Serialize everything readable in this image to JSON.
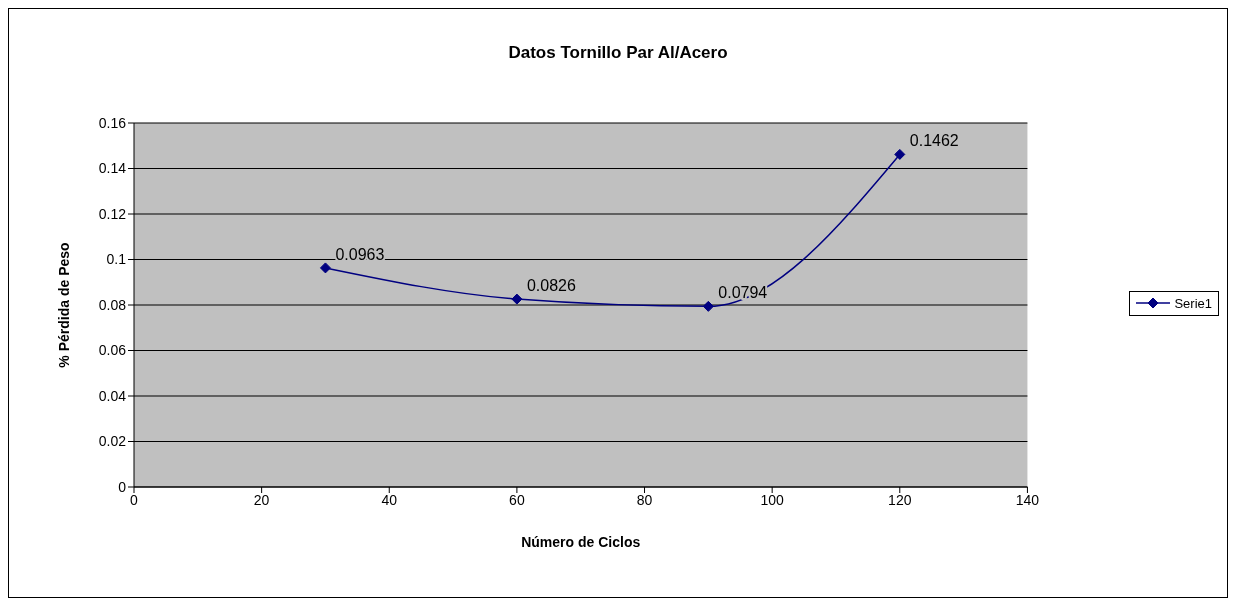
{
  "chart_data": {
    "type": "line",
    "title": "Datos Tornillo Par Al/Acero",
    "xlabel": "Número de Ciclos",
    "ylabel": "% Pérdida de Peso",
    "x": [
      30,
      60,
      90,
      120
    ],
    "series": [
      {
        "name": "Serie1",
        "color": "#000080",
        "values": [
          0.0963,
          0.0826,
          0.0794,
          0.1462
        ]
      }
    ],
    "xlim": [
      0,
      140
    ],
    "xticks": [
      0,
      20,
      40,
      60,
      80,
      100,
      120,
      140
    ],
    "ylim": [
      0,
      0.16
    ],
    "yticks": [
      0,
      0.02,
      0.04,
      0.06,
      0.08,
      0.1,
      0.12,
      0.14,
      0.16
    ],
    "grid": "y",
    "legend": "right",
    "marker": "diamond",
    "line_style": "solid",
    "data_labels": true
  }
}
